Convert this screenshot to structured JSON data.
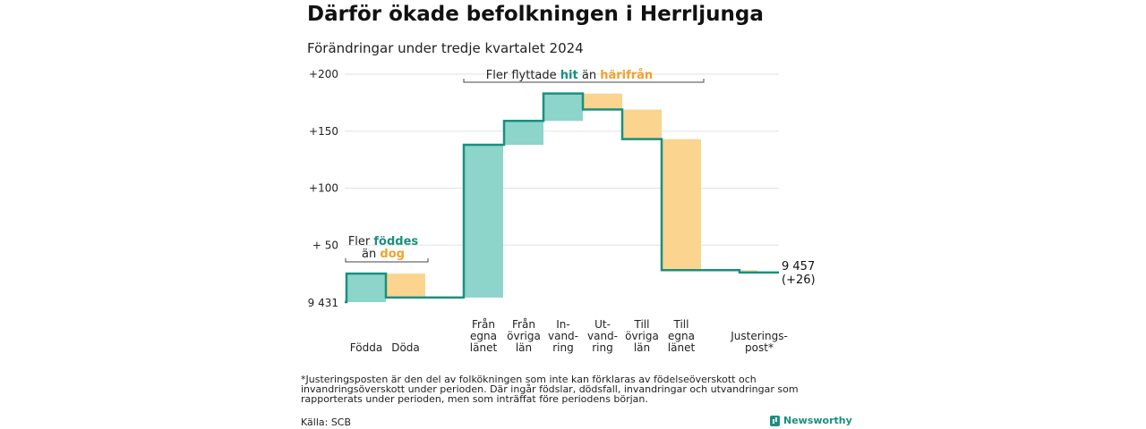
{
  "title": "Därför ökade befolkningen i Herrljunga",
  "subtitle": "Förändringar under tredje kvartalet 2024",
  "footnote": "*Justeringsposten är den del av folkökningen som inte kan förklaras av födelseöverskott och invandringsöverskott under perioden. Där ingår födslar, dödsfall, invandringar och utvandringar som rapporterats under perioden, men som inträffat före periodens början.",
  "source": "Källa: SCB",
  "brand": "Newsworthy",
  "colors": {
    "increase": "#8dd4cb",
    "decrease": "#fbd48f",
    "line": "#1a8f7e",
    "orange_text": "#f0a030",
    "grid": "#e2e2e2"
  },
  "chart_data": {
    "type": "bar",
    "subtype": "waterfall",
    "start_label": "9 431",
    "end_label": [
      "9 457",
      "(+26)"
    ],
    "y_tick_labels": [
      "+200",
      "+150",
      "+100",
      "+ 50"
    ],
    "ylim": [
      0,
      200
    ],
    "start_value": 9431,
    "end_value": 9457,
    "steps": [
      {
        "label": [
          "Födda"
        ],
        "change": 25,
        "type": "increase"
      },
      {
        "label": [
          "Döda"
        ],
        "change": -21,
        "type": "decrease"
      },
      {
        "label": [],
        "change": 0,
        "type": "gap"
      },
      {
        "label": [
          "Från",
          "egna",
          "länet"
        ],
        "change": 134,
        "type": "increase"
      },
      {
        "label": [
          "Från",
          "övriga",
          "län"
        ],
        "change": 21,
        "type": "increase"
      },
      {
        "label": [
          "In-",
          "vand-",
          "ring"
        ],
        "change": 24,
        "type": "increase"
      },
      {
        "label": [
          "Ut-",
          "vand-",
          "ring"
        ],
        "change": -14,
        "type": "decrease"
      },
      {
        "label": [
          "Till",
          "övriga",
          "län"
        ],
        "change": -26,
        "type": "decrease"
      },
      {
        "label": [
          "Till",
          "egna",
          "länet"
        ],
        "change": -115,
        "type": "decrease"
      },
      {
        "label": [
          "Justerings-",
          "post*"
        ],
        "change": -2,
        "type": "decrease"
      }
    ],
    "annotations": [
      {
        "parts": [
          {
            "text": "Fler ",
            "style": "plain"
          },
          {
            "text": "föddes",
            "style": "increase"
          }
        ],
        "line2": [
          {
            "text": "än ",
            "style": "plain"
          },
          {
            "text": "dog",
            "style": "decrease"
          }
        ]
      },
      {
        "parts": [
          {
            "text": "Fler flyttade ",
            "style": "plain"
          },
          {
            "text": "hit",
            "style": "increase"
          },
          {
            "text": " än ",
            "style": "plain"
          },
          {
            "text": "härifrån",
            "style": "decrease"
          }
        ]
      }
    ]
  }
}
